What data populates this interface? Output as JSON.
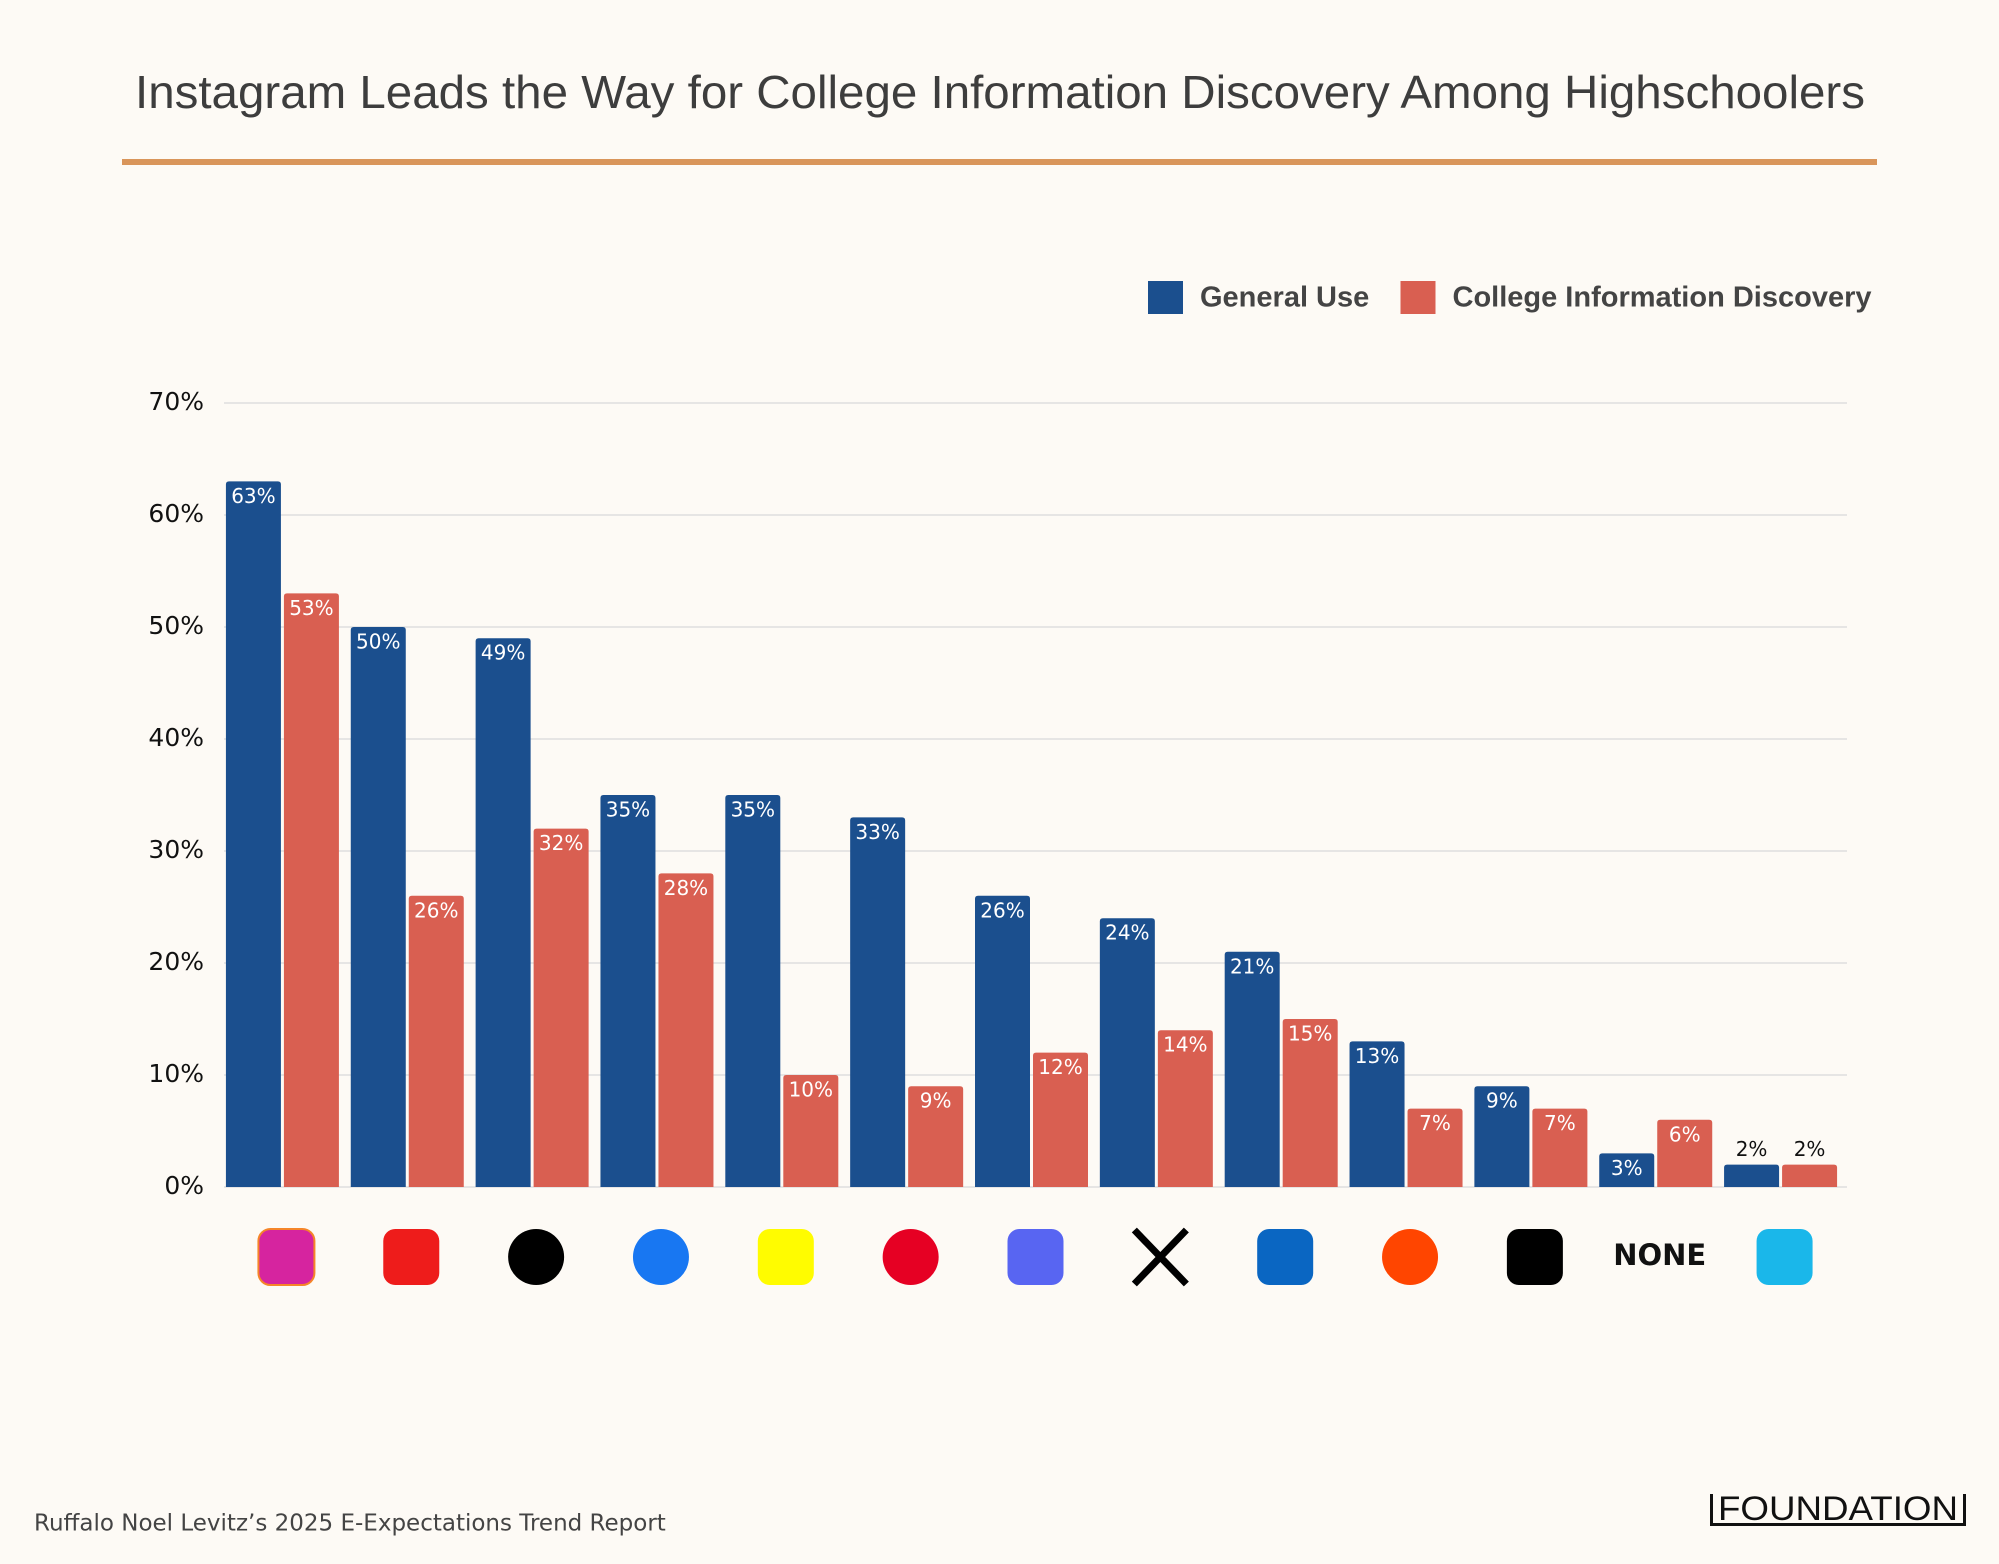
{
  "chart_data": {
    "type": "bar",
    "title": "Instagram Leads the Way for College Information Discovery Among Highschoolers",
    "categories": [
      null,
      null,
      null,
      null,
      null,
      null,
      null,
      null,
      null,
      null,
      null,
      "NONE",
      null
    ],
    "series": [
      {
        "name": "General Use",
        "color": "#1b4f8e",
        "values": [
          63,
          50,
          49,
          35,
          35,
          33,
          26,
          24,
          21,
          13,
          9,
          3,
          2
        ],
        "value_labels": [
          "63%",
          "50%",
          "49%",
          "35%",
          "35%",
          "33%",
          "26%",
          "24%",
          "21%",
          "13%",
          "9%",
          "3%",
          "2%"
        ]
      },
      {
        "name": "College Information Discovery",
        "color": "#d95f51",
        "values": [
          53,
          26,
          32,
          28,
          10,
          9,
          12,
          14,
          15,
          7,
          7,
          6,
          2
        ],
        "value_labels": [
          "53%",
          "26%",
          "32%",
          "28%",
          "10%",
          "9%",
          "12%",
          "14%",
          "15%",
          "7%",
          "7%",
          "6%",
          "2%"
        ]
      }
    ],
    "ylim": [
      0,
      70
    ],
    "yticks": [
      {
        "value": 0,
        "label": "0%"
      },
      {
        "value": 10,
        "label": "10%"
      },
      {
        "value": 20,
        "label": "20%"
      },
      {
        "value": 30,
        "label": "30%"
      },
      {
        "value": 40,
        "label": "40%"
      },
      {
        "value": 50,
        "label": "50%"
      },
      {
        "value": 60,
        "label": "60%"
      },
      {
        "value": 70,
        "label": "70%"
      }
    ],
    "grid": true,
    "legend": "top-right",
    "source": "Ruffalo Noel Levitz’s 2025 E-Expectations Trend Report",
    "logo": "FOUNDATION"
  }
}
